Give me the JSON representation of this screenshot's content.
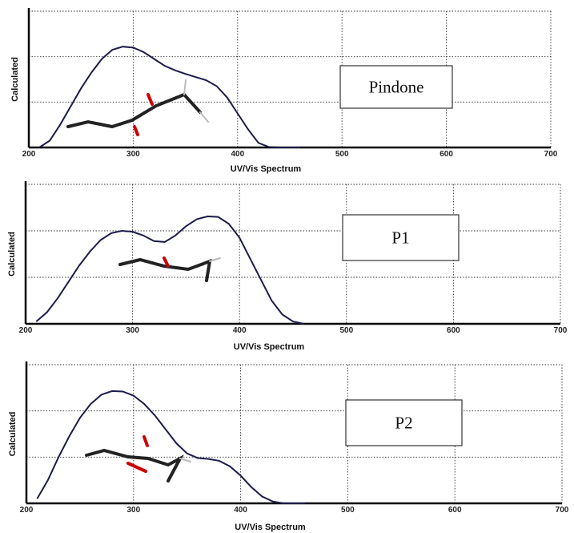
{
  "chart_data": [
    {
      "type": "line",
      "annotation": "Pindone",
      "x_label": "UV/Vis Spectrum",
      "y_label": "Calculated",
      "x": [
        210,
        220,
        230,
        240,
        250,
        260,
        270,
        280,
        290,
        300,
        310,
        320,
        330,
        340,
        350,
        360,
        370,
        380,
        390,
        400,
        410,
        420,
        430,
        440,
        450,
        460
      ],
      "series": [
        {
          "color": "#1c1c4a",
          "values": [
            0,
            0.15,
            0.5,
            0.9,
            1.3,
            1.65,
            1.95,
            2.15,
            2.22,
            2.2,
            2.1,
            1.95,
            1.8,
            1.7,
            1.62,
            1.55,
            1.48,
            1.35,
            1.1,
            0.75,
            0.4,
            0.1,
            0.01,
            0,
            0,
            0
          ]
        }
      ],
      "xlim": [
        200,
        700
      ],
      "xticks": [
        200,
        300,
        400,
        500,
        600,
        700
      ],
      "ylim": [
        0,
        3
      ],
      "yticks": [
        0,
        1,
        2,
        3
      ],
      "ytick_labels": false,
      "grid": true
    },
    {
      "type": "line",
      "annotation": "P1",
      "x_label": "UV/Vis Spectrum",
      "y_label": "Calculated",
      "x": [
        210,
        220,
        230,
        240,
        250,
        260,
        270,
        280,
        290,
        300,
        310,
        320,
        330,
        340,
        350,
        360,
        370,
        380,
        390,
        400,
        410,
        420,
        430,
        440,
        450,
        460
      ],
      "series": [
        {
          "color": "#1c1c4a",
          "values": [
            0.05,
            0.25,
            0.55,
            0.9,
            1.25,
            1.55,
            1.8,
            1.95,
            2.0,
            1.98,
            1.9,
            1.78,
            1.76,
            1.9,
            2.1,
            2.25,
            2.31,
            2.3,
            2.15,
            1.85,
            1.4,
            0.95,
            0.5,
            0.2,
            0.05,
            0
          ]
        }
      ],
      "xlim": [
        200,
        700
      ],
      "xticks": [
        200,
        300,
        400,
        500,
        600,
        700
      ],
      "ylim": [
        0,
        3
      ],
      "yticks": [
        0,
        1,
        2,
        3
      ],
      "ytick_labels": false,
      "grid": true
    },
    {
      "type": "line",
      "annotation": "P2",
      "x_label": "UV/Vis Spectrum",
      "y_label": "Calculated",
      "x": [
        210,
        220,
        230,
        240,
        250,
        260,
        270,
        280,
        290,
        300,
        310,
        320,
        330,
        340,
        350,
        360,
        370,
        380,
        390,
        400,
        410,
        420,
        430,
        440,
        450,
        460
      ],
      "series": [
        {
          "color": "#1c1c4a",
          "values": [
            0.1,
            0.5,
            1.0,
            1.45,
            1.85,
            2.15,
            2.35,
            2.43,
            2.42,
            2.33,
            2.15,
            1.9,
            1.6,
            1.3,
            1.08,
            0.98,
            0.96,
            0.92,
            0.8,
            0.6,
            0.35,
            0.15,
            0.04,
            0,
            0,
            0
          ]
        }
      ],
      "xlim": [
        200,
        700
      ],
      "xticks": [
        200,
        300,
        400,
        500,
        600,
        700
      ],
      "ylim": [
        0,
        3
      ],
      "yticks": [
        0,
        1,
        2,
        3
      ],
      "ytick_labels": false,
      "grid": true
    }
  ]
}
